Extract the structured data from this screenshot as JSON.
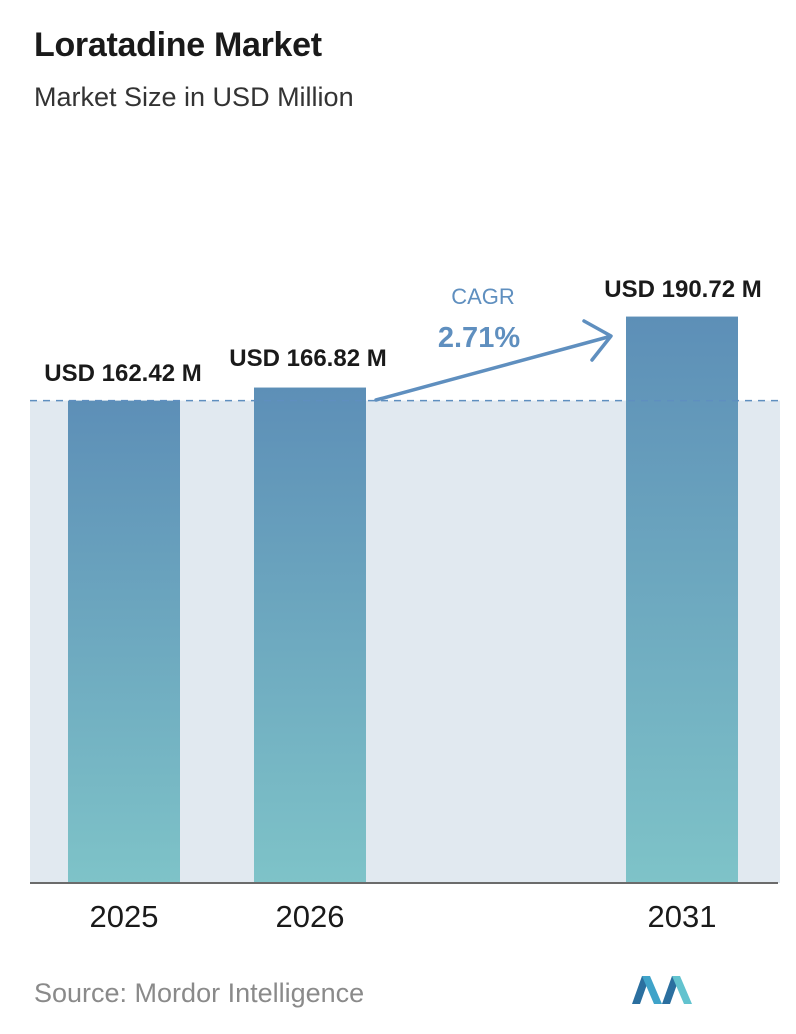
{
  "header": {
    "title": "Loratadine Market",
    "subtitle": "Market Size in USD Million"
  },
  "footer": {
    "source": "Source:  Mordor Intelligence"
  },
  "chart_data": {
    "type": "bar",
    "categories": [
      "2025",
      "2026",
      "2031"
    ],
    "values": [
      162.42,
      166.82,
      190.72
    ],
    "value_labels": [
      "USD 162.42 M",
      "USD 166.82 M",
      "USD 190.72 M"
    ],
    "title": "Loratadine Market",
    "subtitle": "Market Size in USD Million",
    "xlabel": "",
    "ylabel": "",
    "ylim": [
      0,
      200
    ],
    "grid": false,
    "annotation": {
      "label": "CAGR",
      "value": "2.71%"
    },
    "colors": {
      "bar_top": "#5d8fb7",
      "bar_bottom": "#7ec3c8",
      "band": "#e1e9f0",
      "arrow": "#5f8fbf",
      "reference_line": "#5f8fbf"
    }
  }
}
